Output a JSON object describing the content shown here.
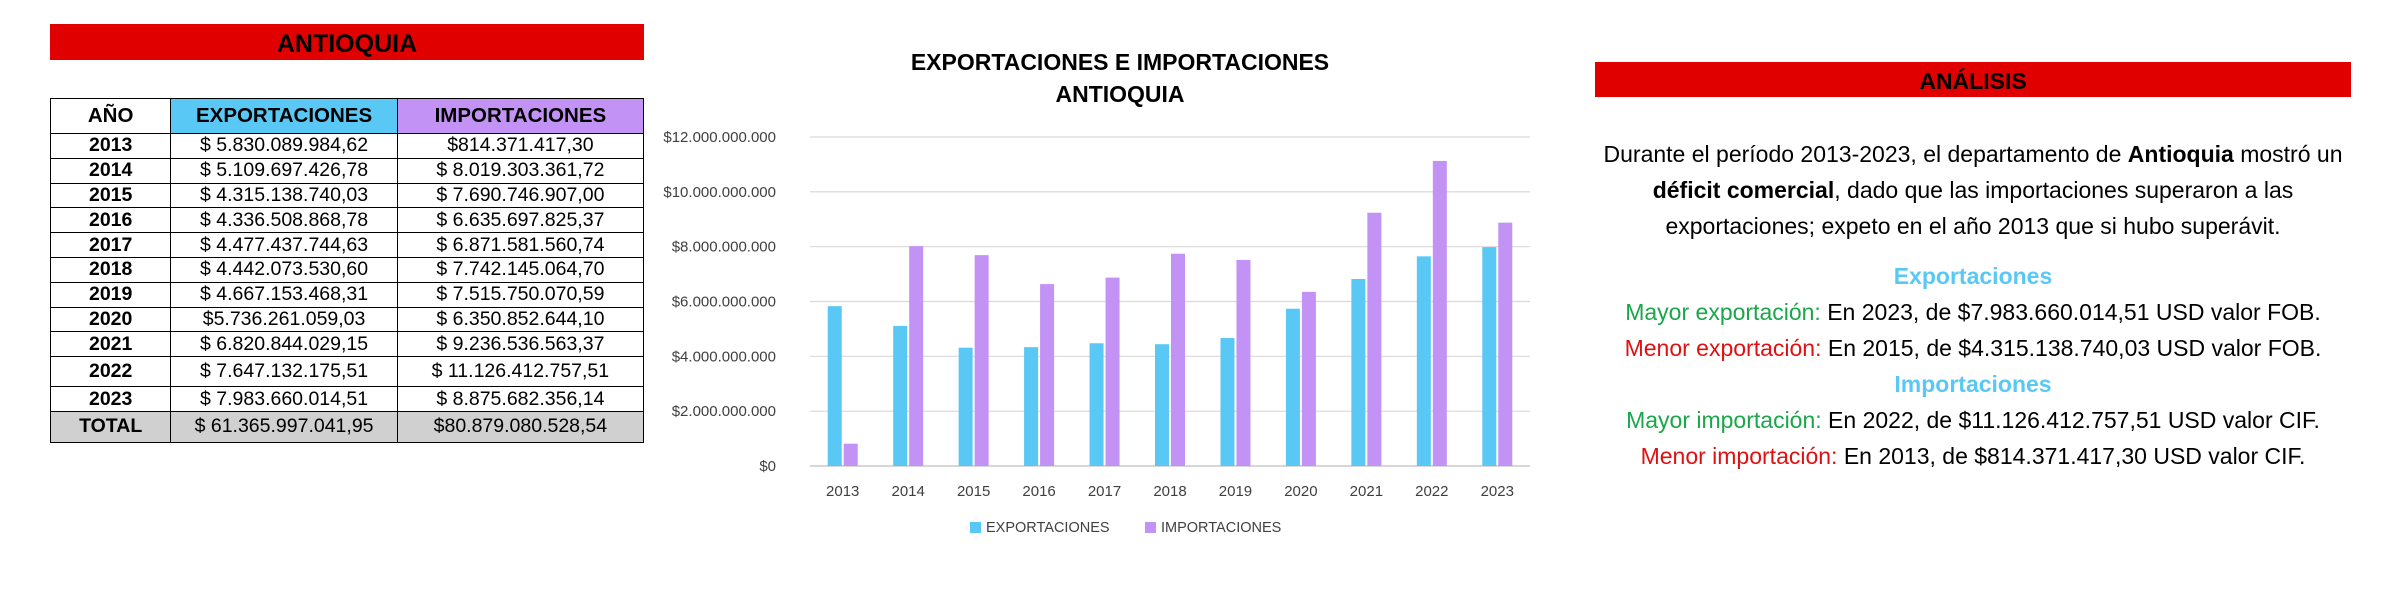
{
  "table": {
    "title": "ANTIOQUIA",
    "headers": [
      "AÑO",
      "EXPORTACIONES",
      "IMPORTACIONES"
    ],
    "rows": [
      [
        "2013",
        "$ 5.830.089.984,62",
        "$814.371.417,30"
      ],
      [
        "2014",
        "$ 5.109.697.426,78",
        "$ 8.019.303.361,72"
      ],
      [
        "2015",
        "$ 4.315.138.740,03",
        "$ 7.690.746.907,00"
      ],
      [
        "2016",
        "$ 4.336.508.868,78",
        "$ 6.635.697.825,37"
      ],
      [
        "2017",
        "$ 4.477.437.744,63",
        "$ 6.871.581.560,74"
      ],
      [
        "2018",
        "$ 4.442.073.530,60",
        "$ 7.742.145.064,70"
      ],
      [
        "2019",
        "$ 4.667.153.468,31",
        "$ 7.515.750.070,59"
      ],
      [
        "2020",
        "$5.736.261.059,03",
        "$ 6.350.852.644,10"
      ],
      [
        "2021",
        "$ 6.820.844.029,15",
        "$ 9.236.536.563,37"
      ],
      [
        "2022",
        "$ 7.647.132.175,51",
        "$ 11.126.412.757,51"
      ],
      [
        "2023",
        "$ 7.983.660.014,51",
        "$ 8.875.682.356,14"
      ]
    ],
    "total": [
      "TOTAL",
      "$ 61.365.997.041,95",
      "$80.879.080.528,54"
    ]
  },
  "chart_data": {
    "type": "bar",
    "title": "EXPORTACIONES E IMPORTACIONES ANTIOQUIA",
    "title_lines": [
      "EXPORTACIONES E IMPORTACIONES",
      "ANTIOQUIA"
    ],
    "categories": [
      "2013",
      "2014",
      "2015",
      "2016",
      "2017",
      "2018",
      "2019",
      "2020",
      "2021",
      "2022",
      "2023"
    ],
    "series": [
      {
        "name": "EXPORTACIONES",
        "color": "#5ac8f5",
        "values": [
          5830089984.62,
          5109697426.78,
          4315138740.03,
          4336508868.78,
          4477437744.63,
          4442073530.6,
          4667153468.31,
          5736261059.03,
          6820844029.15,
          7647132175.51,
          7983660014.51
        ]
      },
      {
        "name": "IMPORTACIONES",
        "color": "#c292f5",
        "values": [
          814371417.3,
          8019303361.72,
          7690746907.0,
          6635697825.37,
          6871581560.74,
          7742145064.7,
          7515750070.59,
          6350852644.1,
          9236536563.37,
          11126412757.51,
          8875682356.14
        ]
      }
    ],
    "yticks": [
      "$0",
      "$2.000.000.000",
      "$4.000.000.000",
      "$6.000.000.000",
      "$8.000.000.000",
      "$10.000.000.000",
      "$12.000.000.000"
    ],
    "ylim": [
      0,
      12000000000
    ],
    "grid": true,
    "legend": "bottom"
  },
  "analysis": {
    "title": "ANÁLISIS",
    "para_parts": [
      "Durante el período 2013-2023, el departamento de ",
      "Antioquia",
      " mostró un ",
      "déficit comercial",
      ", dado que las importaciones superaron a las exportaciones; expeto en el año 2013 que si hubo superávit."
    ],
    "exports_heading": "Exportaciones",
    "max_export_label": "Mayor exportación:",
    "max_export_text": " En 2023, de $7.983.660.014,51 USD valor FOB.",
    "min_export_label": "Menor exportación:",
    "min_export_text": " En 2015, de $4.315.138.740,03 USD valor FOB.",
    "imports_heading": "Importaciones",
    "max_import_label": "Mayor importación:",
    "max_import_text": " En 2022, de $11.126.412.757,51 USD valor CIF.",
    "min_import_label": "Menor importación:",
    "min_import_text": " En 2013, de $814.371.417,30 USD valor CIF."
  }
}
